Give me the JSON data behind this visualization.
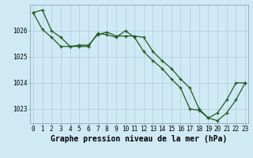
{
  "series1_x": [
    0,
    1,
    2,
    3,
    4,
    5,
    6,
    7,
    8,
    9,
    10,
    11,
    12,
    13,
    14,
    15,
    16,
    17,
    18,
    19,
    20,
    21,
    22,
    23
  ],
  "series1_y": [
    1026.7,
    1026.8,
    1026.0,
    1025.75,
    1025.4,
    1025.4,
    1025.4,
    1025.9,
    1025.85,
    1025.75,
    1026.0,
    1025.75,
    1025.2,
    1024.85,
    1024.55,
    1024.15,
    1023.8,
    1023.0,
    1022.95,
    1022.65,
    1022.85,
    1023.35,
    1024.0,
    1024.0
  ],
  "series2_x": [
    0,
    1,
    2,
    3,
    4,
    5,
    6,
    7,
    8,
    9,
    10,
    11,
    12,
    13,
    14,
    15,
    16,
    17,
    18,
    19,
    20,
    21,
    22,
    23
  ],
  "series2_y": [
    1026.7,
    1026.05,
    1025.75,
    1025.4,
    1025.4,
    1025.45,
    1025.45,
    1025.85,
    1025.95,
    1025.8,
    1025.8,
    1025.8,
    1025.75,
    1025.2,
    1024.85,
    1024.55,
    1024.15,
    1023.8,
    1023.0,
    1022.65,
    1022.55,
    1022.85,
    1023.35,
    1024.0
  ],
  "ylim": [
    1022.45,
    1027.0
  ],
  "xlim": [
    -0.3,
    23.3
  ],
  "yticks": [
    1023,
    1024,
    1025,
    1026
  ],
  "xticks": [
    0,
    1,
    2,
    3,
    4,
    5,
    6,
    7,
    8,
    9,
    10,
    11,
    12,
    13,
    14,
    15,
    16,
    17,
    18,
    19,
    20,
    21,
    22,
    23
  ],
  "xlabel": "Graphe pression niveau de la mer (hPa)",
  "bg_color": "#d0eaf5",
  "grid_color": "#aacbdb",
  "line_color": "#1e5c1e",
  "tick_label_fontsize": 5.5,
  "xlabel_fontsize": 7.0
}
